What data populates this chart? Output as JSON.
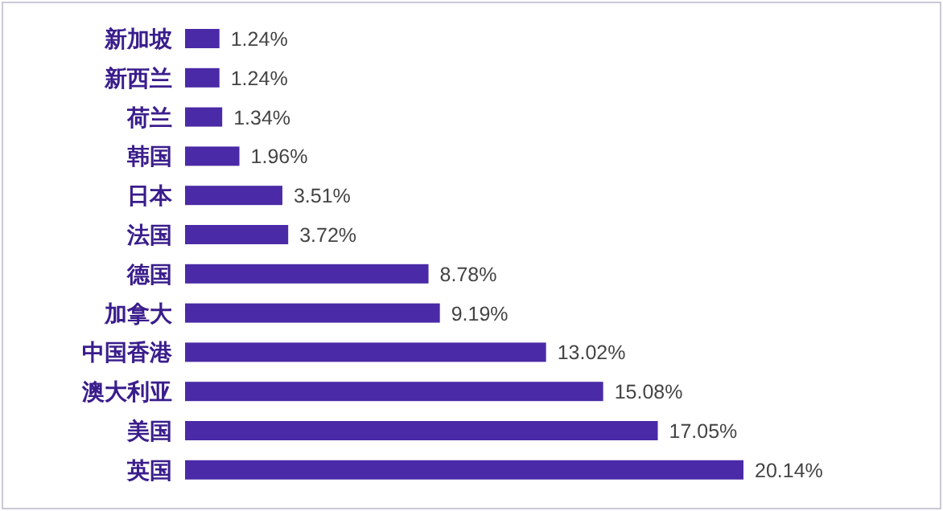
{
  "chart_data": {
    "type": "bar",
    "orientation": "horizontal",
    "categories": [
      "新加坡",
      "新西兰",
      "荷兰",
      "韩国",
      "日本",
      "法国",
      "德国",
      "加拿大",
      "中国香港",
      "澳大利亚",
      "美国",
      "英国"
    ],
    "values": [
      1.24,
      1.24,
      1.34,
      1.96,
      3.51,
      3.72,
      8.78,
      9.19,
      13.02,
      15.08,
      17.05,
      20.14
    ],
    "value_labels": [
      "1.24%",
      "1.24%",
      "1.34%",
      "1.96%",
      "3.51%",
      "3.72%",
      "8.78%",
      "9.19%",
      "13.02%",
      "15.08%",
      "17.05%",
      "20.14%"
    ],
    "color": "#4a2aa6"
  }
}
